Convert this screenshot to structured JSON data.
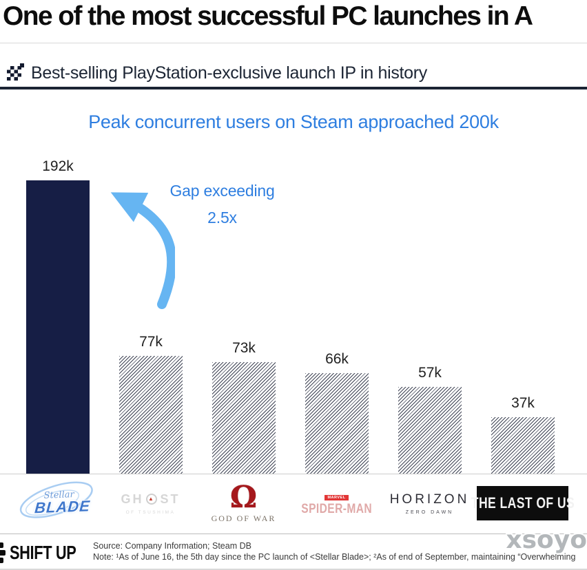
{
  "header": {
    "title": "One of the most successful PC launches in A",
    "subtitle": "Best-selling PlayStation-exclusive launch IP in history"
  },
  "chart_data": {
    "type": "bar",
    "title": "Peak concurrent users on Steam approached 200k",
    "categories": [
      "Stellar Blade",
      "Ghost of Tsushima",
      "God of War",
      "Marvel's Spider-Man",
      "Horizon Zero Dawn",
      "The Last of Us"
    ],
    "values": [
      192,
      77,
      73,
      66,
      57,
      37
    ],
    "value_labels": [
      "192k",
      "77k",
      "73k",
      "66k",
      "57k",
      "37k"
    ],
    "unit": "thousand peak concurrent Steam users",
    "ylim": [
      0,
      192
    ],
    "xlabel": "",
    "ylabel": "",
    "grid": false,
    "legend": "none",
    "axis_labels_visible": false,
    "data_labels_visible": true,
    "highlight_index": 0,
    "highlight_style": "solid navy fill",
    "other_bars_style": "diagonal hatch pattern",
    "annotation": {
      "line1": "Gap exceeding",
      "line2": "2.5x"
    }
  },
  "logos": [
    {
      "name": "stellar-blade",
      "line1": "Stellar",
      "line2": "BLADE"
    },
    {
      "name": "ghost-of-tsushima",
      "left": "GH",
      "right": "ST",
      "mon": "▲",
      "sub": "OF TSUSHIMA"
    },
    {
      "name": "god-of-war",
      "symbol": "Ω",
      "text": "GOD OF WAR"
    },
    {
      "name": "marvels-spider-man",
      "badge": "MARVEL",
      "title": "SPIDER-MAN"
    },
    {
      "name": "horizon-zero-dawn",
      "title": "HORIZON",
      "sub": "ZERO DAWN"
    },
    {
      "name": "the-last-of-us",
      "title": "THE LAST OF US"
    }
  ],
  "footer": {
    "brand": "SHIFT UP",
    "source": "Source: Company Information; Steam DB",
    "note": "Note: ¹As of June 16, the 5th day since the PC launch of <Stellar Blade>; ²As of end of September, maintaining “Overwhelming",
    "watermark": "xsoyo"
  },
  "colors": {
    "accent_blue": "#2e7ee0",
    "arrow_blue": "#66b5f2",
    "bar_navy": "#161e45",
    "rule_navy": "#1b2433",
    "hatch_line": "#3e4354"
  }
}
